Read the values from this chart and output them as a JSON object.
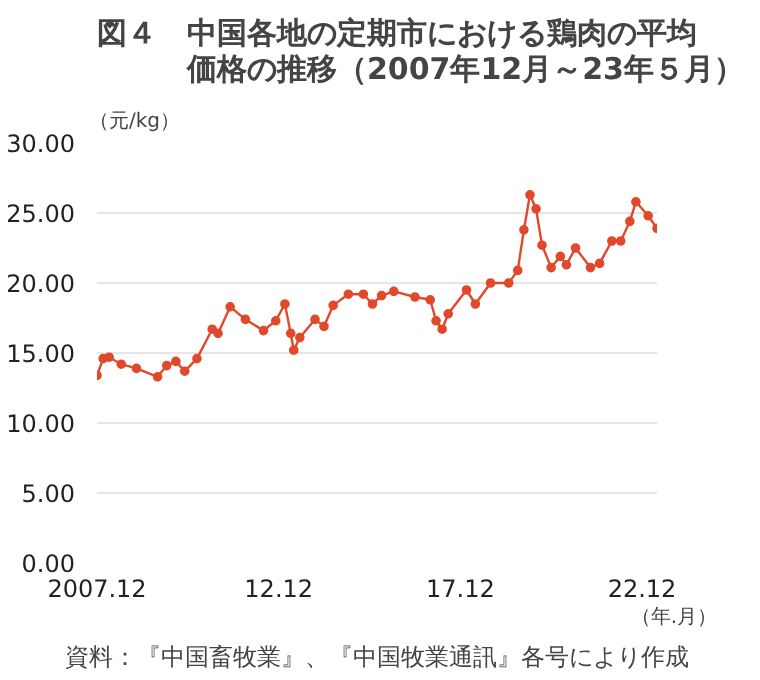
{
  "chart_data": {
    "type": "line",
    "title": "図４　中国各地の定期市における鶏肉の平均価格の推移（2007年12月～23年５月）",
    "ylabel": "（元/kg）",
    "xlabel": "（年.月）",
    "annotations": [
      "資料：『中国畜牧業』、『中国牧業通訊』各号により作成"
    ],
    "x": [
      "2007-12",
      "2008-02",
      "2008-04",
      "2008-08",
      "2009-01",
      "2009-08",
      "2009-11",
      "2010-02",
      "2010-05",
      "2010-09",
      "2011-02",
      "2011-04",
      "2011-08",
      "2012-01",
      "2012-07",
      "2012-11",
      "2013-02",
      "2013-04",
      "2013-05",
      "2013-07",
      "2013-12",
      "2014-03",
      "2014-06",
      "2014-11",
      "2015-04",
      "2015-07",
      "2015-10",
      "2016-02",
      "2016-09",
      "2017-02",
      "2017-04",
      "2017-06",
      "2017-08",
      "2018-02",
      "2018-05",
      "2018-10",
      "2019-04",
      "2019-07",
      "2019-09",
      "2019-11",
      "2020-01",
      "2020-03",
      "2020-06",
      "2020-09",
      "2020-11",
      "2021-02",
      "2021-07",
      "2021-10",
      "2022-02",
      "2022-05",
      "2022-08",
      "2022-10",
      "2023-02",
      "2023-05"
    ],
    "series": [
      {
        "color": "#e0492b",
        "values": [
          13.4,
          14.6,
          14.7,
          14.2,
          13.9,
          13.3,
          14.1,
          14.4,
          13.7,
          14.6,
          16.7,
          16.4,
          18.3,
          17.4,
          16.6,
          17.3,
          18.5,
          16.4,
          15.2,
          16.1,
          17.4,
          16.9,
          18.4,
          19.2,
          19.2,
          18.5,
          19.1,
          19.4,
          19.0,
          18.8,
          17.3,
          16.7,
          17.8,
          19.5,
          18.5,
          20.0,
          20.0,
          20.9,
          23.8,
          26.3,
          25.3,
          22.7,
          21.1,
          21.9,
          21.3,
          22.5,
          21.1,
          21.4,
          23.0,
          23.0,
          24.4,
          25.8,
          24.8,
          23.9
        ]
      }
    ],
    "xlim": [
      "2007-12",
      "2023-05"
    ],
    "xticks": [
      {
        "value": "2007-12",
        "label": "2007.12"
      },
      {
        "value": "2012-12",
        "label": "12.12"
      },
      {
        "value": "2017-12",
        "label": "17.12"
      },
      {
        "value": "2022-12",
        "label": "22.12"
      }
    ],
    "ylim": [
      0,
      30
    ],
    "yticks": [
      {
        "value": 0,
        "label": "0.00"
      },
      {
        "value": 5,
        "label": "5.00"
      },
      {
        "value": 10,
        "label": "10.00"
      },
      {
        "value": 15,
        "label": "15.00"
      },
      {
        "value": 20,
        "label": "20.00"
      },
      {
        "value": 25,
        "label": "25.00"
      },
      {
        "value": 30,
        "label": "30.00"
      }
    ],
    "grid": "y",
    "marker": "circle",
    "line_style": "solid"
  }
}
